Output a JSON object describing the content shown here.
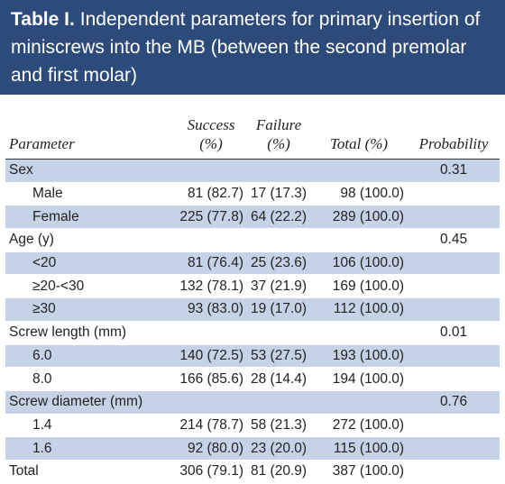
{
  "header": {
    "label": "Table I.",
    "title": "Independent parameters for primary insertion of miniscrews into the MB (between the second premolar and first molar)"
  },
  "table": {
    "columns": [
      "Parameter",
      "Success (%)",
      "Failure (%)",
      "Total (%)",
      "Probability"
    ],
    "rows": [
      [
        "Sex",
        "",
        "",
        "",
        "0.31"
      ],
      [
        "Male",
        "81 (82.7)",
        "17 (17.3)",
        "98 (100.0)",
        ""
      ],
      [
        "Female",
        "225 (77.8)",
        "64 (22.2)",
        "289 (100.0)",
        ""
      ],
      [
        "Age (y)",
        "",
        "",
        "",
        "0.45"
      ],
      [
        "<20",
        "81 (76.4)",
        "25 (23.6)",
        "106 (100.0)",
        ""
      ],
      [
        "≥20-<30",
        "132 (78.1)",
        "37 (21.9)",
        "169 (100.0)",
        ""
      ],
      [
        "≥30",
        "93 (83.0)",
        "19 (17.0)",
        "112 (100.0)",
        ""
      ],
      [
        "Screw length (mm)",
        "",
        "",
        "",
        "0.01"
      ],
      [
        "6.0",
        "140 (72.5)",
        "53 (27.5)",
        "193 (100.0)",
        ""
      ],
      [
        "8.0",
        "166 (85.6)",
        "28 (14.4)",
        "194 (100.0)",
        ""
      ],
      [
        "Screw diameter (mm)",
        "",
        "",
        "",
        "0.76"
      ],
      [
        "1.4",
        "214 (78.7)",
        "58 (21.3)",
        "272 (100.0)",
        ""
      ],
      [
        "1.6",
        "92 (80.0)",
        "23 (20.0)",
        "115 (100.0)",
        ""
      ],
      [
        "Total",
        "306 (79.1)",
        "81 (20.9)",
        "387 (100.0)",
        ""
      ]
    ]
  }
}
